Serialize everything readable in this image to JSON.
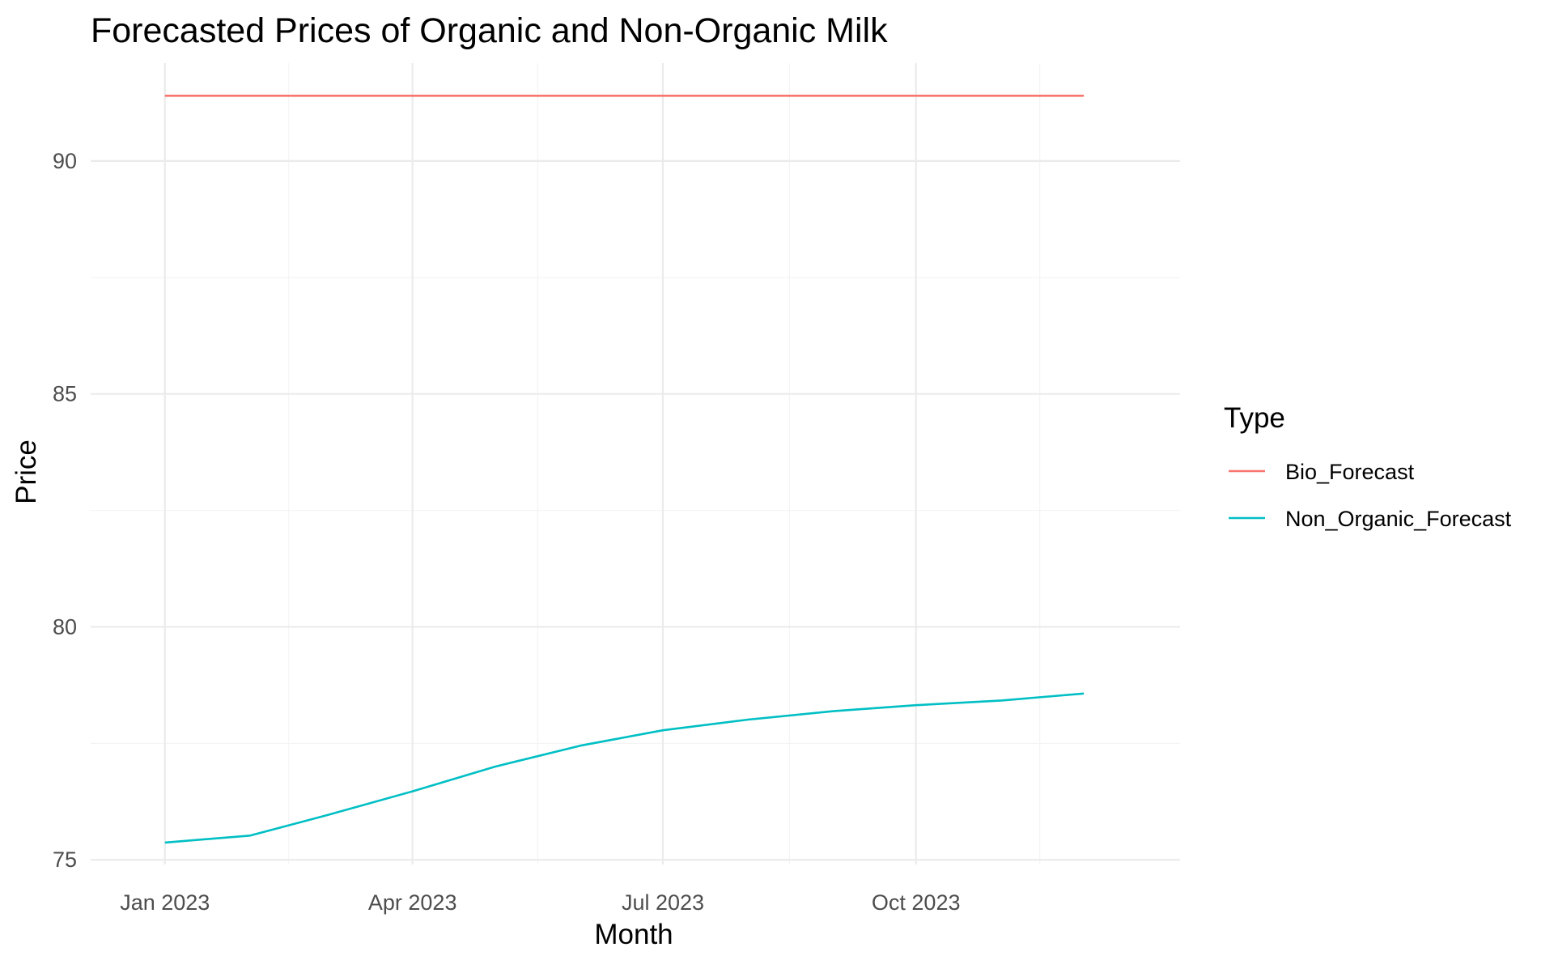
{
  "chart_data": {
    "type": "line",
    "title": "Forecasted Prices of Organic and Non-Organic Milk",
    "xlabel": "Month",
    "ylabel": "Price",
    "x": [
      "2023-01",
      "2023-02",
      "2023-03",
      "2023-04",
      "2023-05",
      "2023-06",
      "2023-07",
      "2023-08",
      "2023-09",
      "2023-10",
      "2023-11",
      "2023-12"
    ],
    "x_ticks": [
      "2023-01",
      "2023-04",
      "2023-07",
      "2023-10"
    ],
    "x_tick_labels": [
      "Jan 2023",
      "Apr 2023",
      "Jul 2023",
      "Oct 2023"
    ],
    "x_range": [
      "2022-12-05",
      "2024-01-05"
    ],
    "y_ticks": [
      75,
      80,
      85,
      90
    ],
    "ylim": [
      74.9,
      92.1
    ],
    "grid": true,
    "legend": {
      "title": "Type",
      "position": "right"
    },
    "series": [
      {
        "name": "Bio_Forecast",
        "color": "#f8766d",
        "values": [
          91.4,
          91.4,
          91.4,
          91.4,
          91.4,
          91.4,
          91.4,
          91.4,
          91.4,
          91.4,
          91.4,
          91.4
        ]
      },
      {
        "name": "Non_Organic_Forecast",
        "color": "#00bfc4",
        "values": [
          75.37,
          75.52,
          75.96,
          76.47,
          77.0,
          77.45,
          77.78,
          78.01,
          78.19,
          78.32,
          78.42,
          78.57
        ]
      }
    ]
  }
}
